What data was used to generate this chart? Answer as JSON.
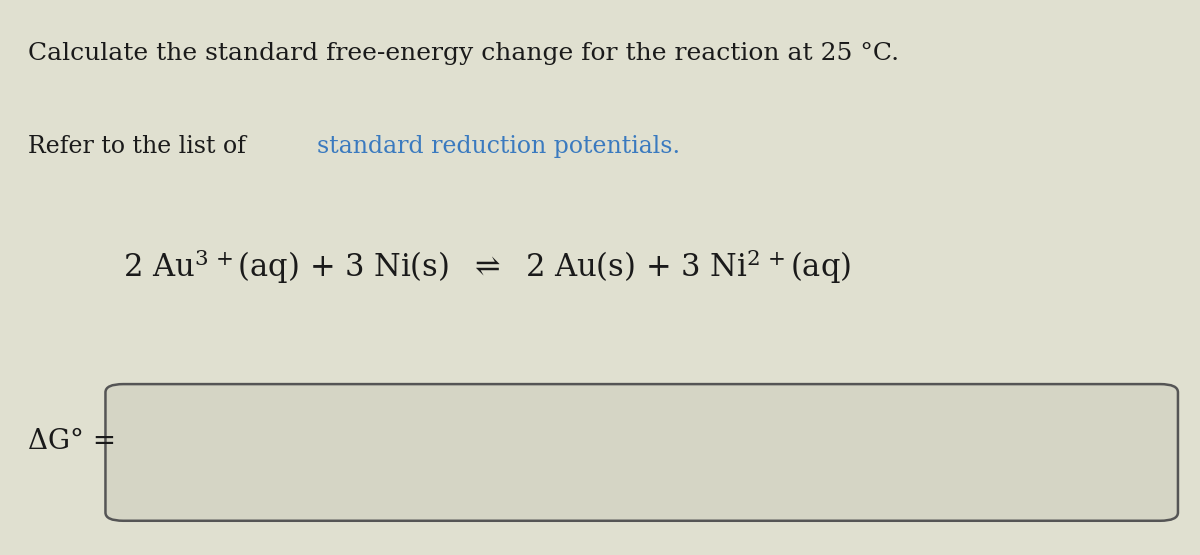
{
  "background_color": "#e0e0d0",
  "title_line": "Calculate the standard free-energy change for the reaction at 25 °C.",
  "refer_line_plain": "Refer to the list of ",
  "refer_line_link": "standard reduction potentials.",
  "delta_g_label": "ΔG° =",
  "title_fontsize": 18,
  "refer_fontsize": 17,
  "equation_fontsize": 22,
  "delta_g_fontsize": 20,
  "text_color": "#1a1a1a",
  "link_color": "#3a7abf",
  "box_fill": "#d5d5c5",
  "box_line_color": "#555555"
}
